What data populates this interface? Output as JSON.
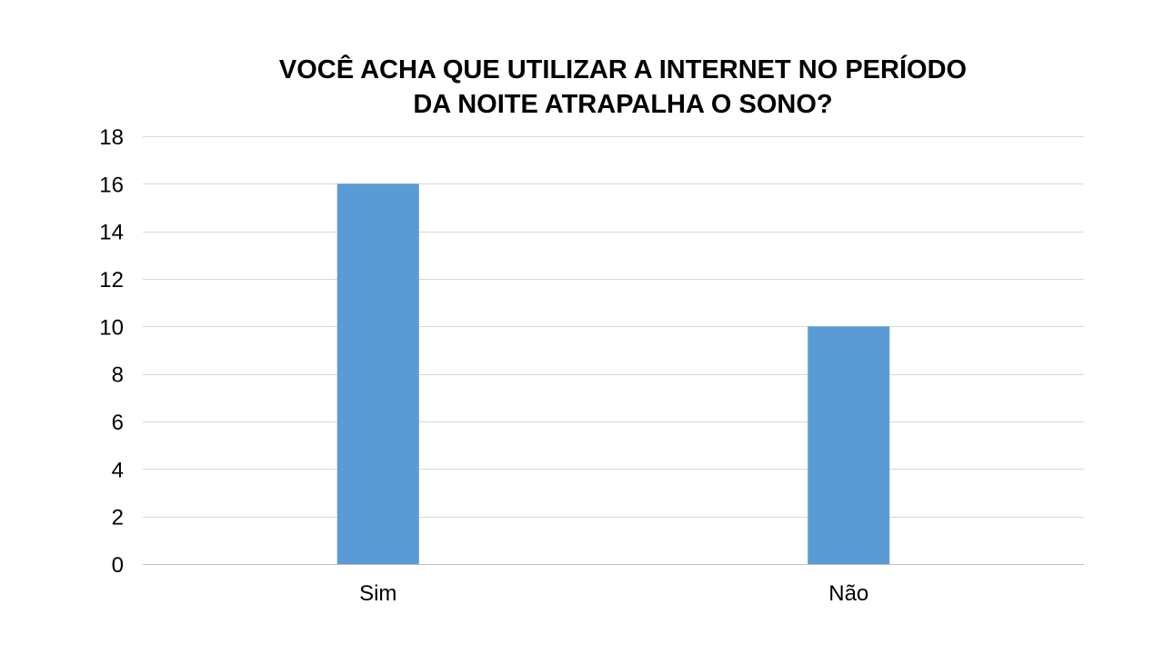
{
  "chart_data": {
    "type": "bar",
    "title_lines": [
      "VOCÊ ACHA QUE UTILIZAR A INTERNET NO PERÍODO",
      "DA NOITE ATRAPALHA O SONO?"
    ],
    "categories": [
      "Sim",
      "Não"
    ],
    "values": [
      16,
      10
    ],
    "ylim": [
      0,
      18
    ],
    "ytick_step": 2,
    "grid": true,
    "legend": "none",
    "bar_color": "#5B9BD5",
    "grid_color": "#D9D9D9",
    "axis_color": "#BFBFBF"
  }
}
